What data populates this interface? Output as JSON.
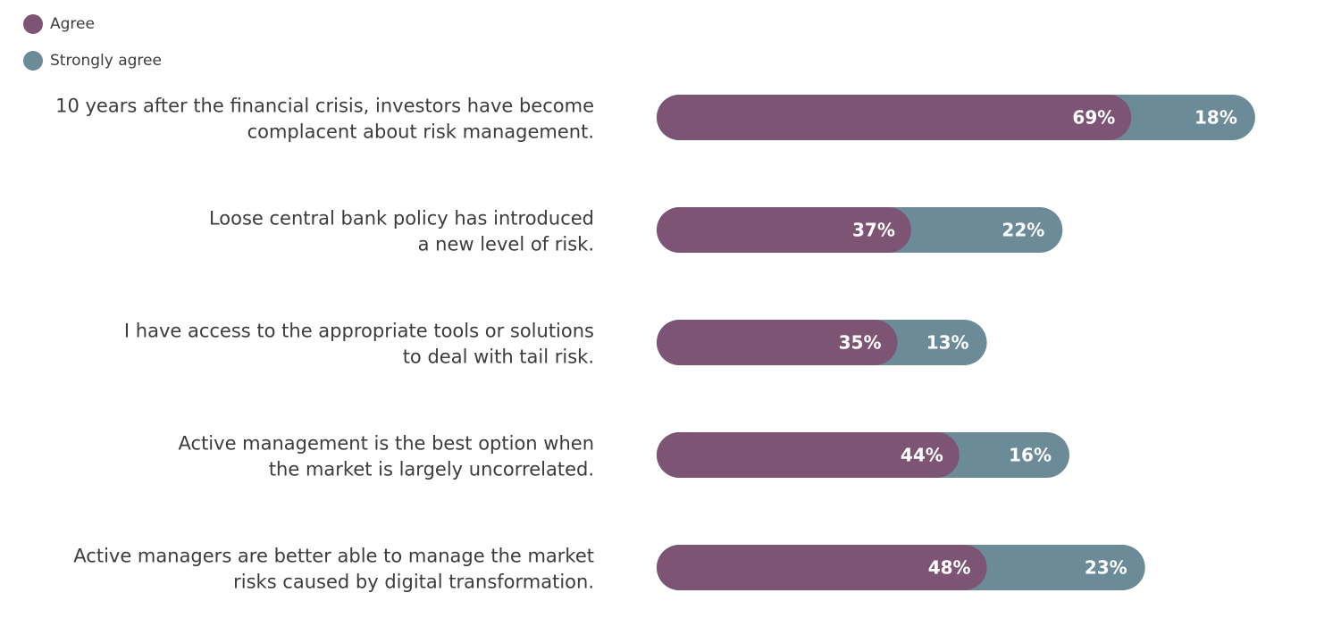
{
  "colors": {
    "agree": "#7d5473",
    "strongly_agree": "#6b8b99"
  },
  "chart_data": {
    "type": "bar",
    "orientation": "horizontal",
    "stacked": true,
    "legend_position": "top-left",
    "grid": false,
    "value_suffix": "%",
    "categories": [
      [
        "10 years after the financial crisis, investors have become",
        "complacent about risk management."
      ],
      [
        "Loose central bank policy has introduced",
        "a new level of risk."
      ],
      [
        "I have access to the appropriate tools or solutions",
        "to deal with tail risk."
      ],
      [
        "Active management is the best option when",
        "the market is largely uncorrelated."
      ],
      [
        "Active managers are better able to manage the market",
        "risks caused by digital transformation."
      ]
    ],
    "series": [
      {
        "name": "Agree",
        "values": [
          69,
          37,
          35,
          44,
          48
        ]
      },
      {
        "name": "Strongly agree",
        "values": [
          18,
          22,
          13,
          16,
          23
        ]
      }
    ]
  }
}
